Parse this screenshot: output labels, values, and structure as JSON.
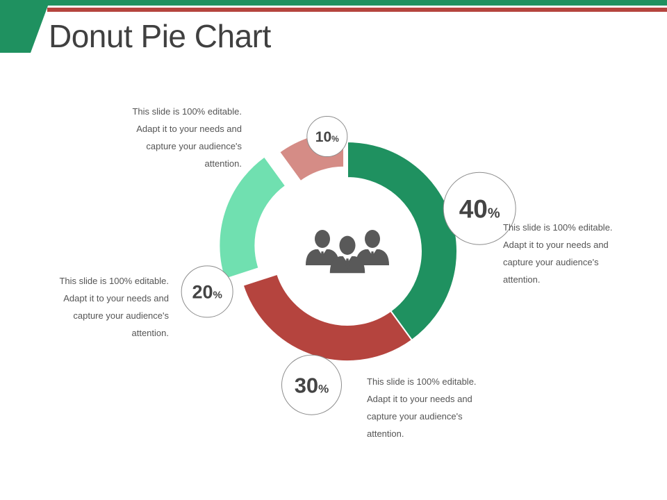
{
  "title": "Donut Pie Chart",
  "colors": {
    "header_green": "#1f9160",
    "header_red": "#b5443e",
    "text": "#555555"
  },
  "center_icon": "business-team-icon",
  "chart_data": {
    "type": "pie",
    "style": "donut",
    "unit": "%",
    "slices": [
      {
        "value": 40,
        "color": "#1f9160",
        "description": "This slide is 100% editable. Adapt it to your needs and capture your audience's attention."
      },
      {
        "value": 30,
        "color": "#b5443e",
        "description": "This slide is 100% editable. Adapt it to your needs and capture your audience's attention."
      },
      {
        "value": 20,
        "color": "#70e0b0",
        "description": "This slide is 100% editable. Adapt it to your needs and capture your audience's attention."
      },
      {
        "value": 10,
        "color": "#d58c86",
        "description": "This slide is 100% editable. Adapt it to your needs and capture your audience's attention."
      }
    ]
  }
}
